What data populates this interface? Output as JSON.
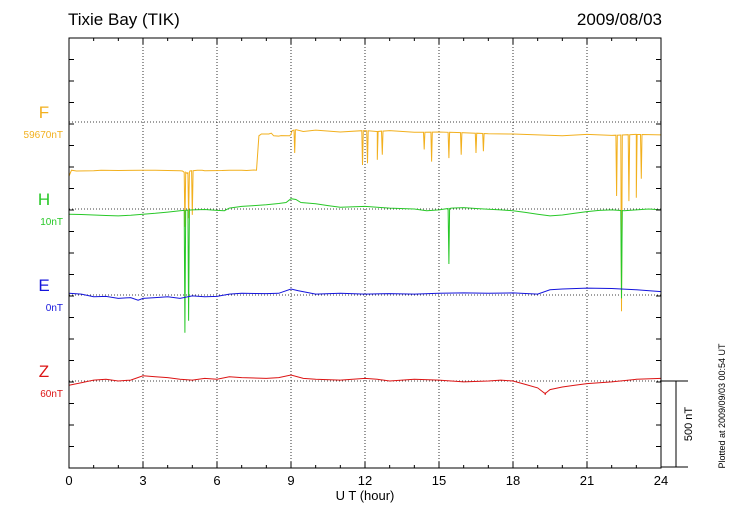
{
  "header": {
    "station": "Tixie Bay (TIK)",
    "date": "2009/08/03"
  },
  "plot_note": "Plotted at 2009/09/03 00:54 UT",
  "chart_data": {
    "type": "line",
    "title": "Tixie Bay (TIK)",
    "date": "2009/08/03",
    "xlabel": "U T (hour)",
    "xlim": [
      0,
      24
    ],
    "xticks": [
      0,
      3,
      6,
      9,
      12,
      15,
      18,
      21,
      24
    ],
    "x_tick_labels": [
      "0",
      "3",
      "6",
      "9",
      "12",
      "15",
      "18",
      "21",
      "24"
    ],
    "grid": true,
    "scale_bar": {
      "value": 500,
      "label": "500 nT"
    },
    "series": [
      {
        "name": "F",
        "baseline_label": "59670nT",
        "color": "#f2b01e",
        "points": [
          [
            0,
            -315
          ],
          [
            0.1,
            -280
          ],
          [
            0.3,
            -285
          ],
          [
            1,
            -283
          ],
          [
            1.3,
            -281
          ],
          [
            2,
            -282
          ],
          [
            3,
            -280
          ],
          [
            3.5,
            -281
          ],
          [
            4,
            -282
          ],
          [
            4.5,
            -283
          ],
          [
            4.6,
            -285
          ],
          [
            4.8,
            -300
          ],
          [
            4.9,
            -285
          ],
          [
            5.2,
            -280
          ],
          [
            5.4,
            -280
          ],
          [
            5.5,
            -283
          ],
          [
            6.2,
            -282
          ],
          [
            6.5,
            -280
          ],
          [
            7,
            -281
          ],
          [
            7.2,
            -282
          ],
          [
            7.5,
            -279
          ],
          [
            7.6,
            -280
          ],
          [
            7.7,
            -80
          ],
          [
            7.8,
            -70
          ],
          [
            8.1,
            -70
          ],
          [
            8.2,
            -65
          ],
          [
            8.3,
            -80
          ],
          [
            8.5,
            -82
          ],
          [
            8.6,
            -79
          ],
          [
            8.9,
            -80
          ],
          [
            8.95,
            -80
          ],
          [
            9.0,
            -70
          ],
          [
            9.05,
            -50
          ],
          [
            9.2,
            -45
          ],
          [
            9.5,
            -55
          ],
          [
            10,
            -47
          ],
          [
            11,
            -58
          ],
          [
            12,
            -50
          ],
          [
            12.5,
            -55
          ],
          [
            13,
            -50
          ],
          [
            14,
            -60
          ],
          [
            15,
            -58
          ],
          [
            16,
            -62
          ],
          [
            17,
            -68
          ],
          [
            18,
            -70
          ],
          [
            19,
            -75
          ],
          [
            20,
            -80
          ],
          [
            21,
            -72
          ],
          [
            21.5,
            -75
          ],
          [
            22,
            -78
          ],
          [
            23,
            -72
          ],
          [
            24,
            -75
          ]
        ],
        "spikes": [
          [
            4.7,
            -610
          ],
          [
            4.85,
            -560
          ],
          [
            5.0,
            -540
          ],
          [
            9.15,
            -180
          ],
          [
            11.9,
            -250
          ],
          [
            12.1,
            -240
          ],
          [
            12.5,
            -220
          ],
          [
            12.7,
            -190
          ],
          [
            14.4,
            -160
          ],
          [
            14.7,
            -230
          ],
          [
            15.4,
            -210
          ],
          [
            15.9,
            -190
          ],
          [
            16.5,
            -180
          ],
          [
            16.8,
            -170
          ],
          [
            22.2,
            -430
          ],
          [
            22.4,
            -1100
          ],
          [
            22.7,
            -460
          ],
          [
            23.0,
            -440
          ],
          [
            23.2,
            -330
          ]
        ]
      },
      {
        "name": "H",
        "baseline_label": "10nT",
        "color": "#28c828",
        "points": [
          [
            0,
            -30
          ],
          [
            0.5,
            -32
          ],
          [
            1,
            -35
          ],
          [
            1.5,
            -38
          ],
          [
            2,
            -40
          ],
          [
            2.5,
            -36
          ],
          [
            3,
            -30
          ],
          [
            3.5,
            -25
          ],
          [
            4,
            -18
          ],
          [
            4.5,
            -10
          ],
          [
            5,
            -5
          ],
          [
            5.5,
            -3
          ],
          [
            6,
            -8
          ],
          [
            6.3,
            -10
          ],
          [
            6.5,
            5
          ],
          [
            7,
            15
          ],
          [
            7.5,
            20
          ],
          [
            8,
            25
          ],
          [
            8.5,
            32
          ],
          [
            8.8,
            38
          ],
          [
            9,
            60
          ],
          [
            9.2,
            55
          ],
          [
            9.4,
            38
          ],
          [
            10,
            30
          ],
          [
            10.5,
            20
          ],
          [
            11,
            10
          ],
          [
            12,
            15
          ],
          [
            12.5,
            10
          ],
          [
            13,
            5
          ],
          [
            14,
            0
          ],
          [
            14.5,
            -10
          ],
          [
            15,
            -5
          ],
          [
            15.5,
            5
          ],
          [
            16,
            8
          ],
          [
            16.5,
            3
          ],
          [
            17,
            -2
          ],
          [
            17.5,
            -5
          ],
          [
            18,
            -10
          ],
          [
            18.5,
            -20
          ],
          [
            19,
            -30
          ],
          [
            19.5,
            -40
          ],
          [
            20,
            -35
          ],
          [
            20.5,
            -25
          ],
          [
            21,
            -15
          ],
          [
            21.5,
            -8
          ],
          [
            22,
            -5
          ],
          [
            22.5,
            -10
          ],
          [
            23,
            -5
          ],
          [
            23.5,
            0
          ],
          [
            24,
            -5
          ]
        ],
        "spikes": [
          [
            4.7,
            -720
          ],
          [
            4.85,
            -650
          ],
          [
            15.4,
            -320
          ],
          [
            22.4,
            -520
          ]
        ]
      },
      {
        "name": "E",
        "baseline_label": "0nT",
        "color": "#1414dc",
        "points": [
          [
            0,
            10
          ],
          [
            0.5,
            5
          ],
          [
            1,
            -10
          ],
          [
            1.5,
            -8
          ],
          [
            2,
            -20
          ],
          [
            2.5,
            -15
          ],
          [
            2.8,
            -30
          ],
          [
            3,
            -20
          ],
          [
            3.5,
            -15
          ],
          [
            4,
            -10
          ],
          [
            4.5,
            -20
          ],
          [
            5,
            -5
          ],
          [
            5.5,
            -10
          ],
          [
            6,
            -8
          ],
          [
            6.5,
            5
          ],
          [
            7,
            10
          ],
          [
            8,
            8
          ],
          [
            8.5,
            10
          ],
          [
            9,
            35
          ],
          [
            9.3,
            25
          ],
          [
            10,
            5
          ],
          [
            11,
            10
          ],
          [
            12,
            5
          ],
          [
            13,
            8
          ],
          [
            14,
            5
          ],
          [
            15,
            10
          ],
          [
            16,
            12
          ],
          [
            17,
            10
          ],
          [
            18,
            12
          ],
          [
            19,
            5
          ],
          [
            19.5,
            30
          ],
          [
            20,
            35
          ],
          [
            21,
            40
          ],
          [
            22,
            38
          ],
          [
            23,
            30
          ],
          [
            24,
            20
          ]
        ],
        "spikes": []
      },
      {
        "name": "Z",
        "baseline_label": "60nT",
        "color": "#dc1414",
        "points": [
          [
            0,
            -25
          ],
          [
            0.5,
            -10
          ],
          [
            1,
            5
          ],
          [
            1.5,
            10
          ],
          [
            2,
            0
          ],
          [
            2.5,
            5
          ],
          [
            3,
            30
          ],
          [
            3.5,
            25
          ],
          [
            4,
            20
          ],
          [
            4.5,
            10
          ],
          [
            5,
            5
          ],
          [
            5.5,
            15
          ],
          [
            6,
            10
          ],
          [
            6.5,
            25
          ],
          [
            7,
            20
          ],
          [
            8,
            15
          ],
          [
            8.5,
            20
          ],
          [
            9,
            35
          ],
          [
            9.5,
            15
          ],
          [
            10,
            10
          ],
          [
            11,
            5
          ],
          [
            12,
            15
          ],
          [
            12.5,
            10
          ],
          [
            13,
            0
          ],
          [
            14,
            10
          ],
          [
            15,
            5
          ],
          [
            16,
            -5
          ],
          [
            17,
            0
          ],
          [
            17.5,
            5
          ],
          [
            18,
            0
          ],
          [
            18.5,
            -20
          ],
          [
            19,
            -40
          ],
          [
            19.3,
            -70
          ],
          [
            19.5,
            -50
          ],
          [
            20,
            -35
          ],
          [
            20.5,
            -25
          ],
          [
            21,
            -15
          ],
          [
            21.5,
            -10
          ],
          [
            22,
            -5
          ],
          [
            23,
            10
          ],
          [
            24,
            15
          ]
        ],
        "spikes": [
          [
            19.3,
            -80
          ]
        ]
      }
    ]
  }
}
